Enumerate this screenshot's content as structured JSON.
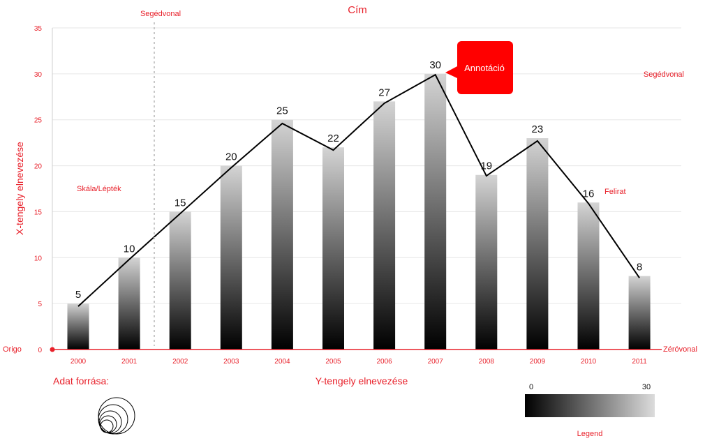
{
  "chart_data": {
    "type": "bar",
    "title": "Cím",
    "xlabel": "Y-tengely elnevezése",
    "ylabel": "X-tengely elnevezése",
    "categories": [
      "2000",
      "2001",
      "2002",
      "2003",
      "2004",
      "2005",
      "2006",
      "2007",
      "2008",
      "2009",
      "2010",
      "2011"
    ],
    "series": [
      {
        "values": [
          5,
          10,
          15,
          20,
          25,
          22,
          27,
          30,
          19,
          23,
          16,
          8
        ]
      }
    ],
    "line_values": [
      4.7,
      9.8,
      14.8,
      19.8,
      24.6,
      21.7,
      26.8,
      29.9,
      18.9,
      22.7,
      15.9,
      7.8
    ],
    "ylim": [
      0,
      35
    ],
    "yticks": [
      0,
      5,
      10,
      15,
      20,
      25,
      30,
      35
    ],
    "grid": true,
    "annotation": {
      "text": "Annotáció",
      "category": "2007"
    },
    "reference_line_label": "Segédvonal",
    "horizontal_guide_label": "Segédvonal",
    "scale_label": "Skála/Lépték",
    "caption_label": "Felirat",
    "origin_label": "Origo",
    "zero_line_label": "Zéróvonal",
    "source_label": "Adat forrása:",
    "legend": {
      "label": "Legend",
      "min": "0",
      "max": "30"
    }
  },
  "colors": {
    "accent": "#e8202a",
    "bar_top": "#d6d6d6",
    "bar_bottom": "#000000",
    "line": "#000000"
  }
}
